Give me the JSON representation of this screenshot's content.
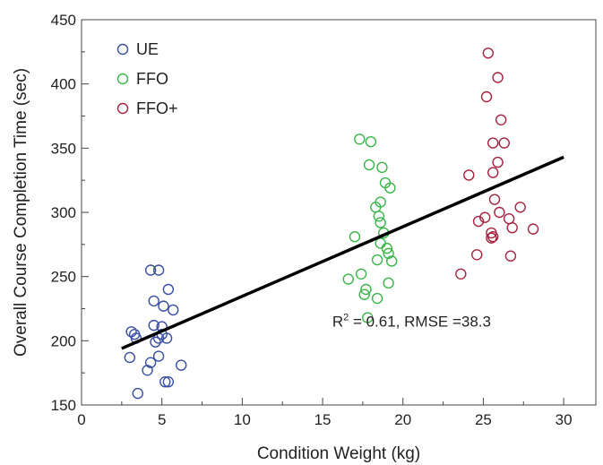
{
  "chart_data": {
    "type": "scatter",
    "xlabel": "Condition Weight (kg)",
    "ylabel": "Overall Course Completion Time (sec)",
    "xlim": [
      0,
      32
    ],
    "ylim": [
      150,
      450
    ],
    "x_ticks": [
      0,
      5,
      10,
      15,
      20,
      25,
      30
    ],
    "y_ticks": [
      150,
      200,
      250,
      300,
      350,
      400,
      450
    ],
    "grid": false,
    "legend_position": "top-left",
    "annotation": {
      "r2_prefix": "R",
      "r2_sup": "2",
      "text": " = 0.61, RMSE =38.3",
      "x": 15.6,
      "y": 211
    },
    "trendline": {
      "x": [
        2.5,
        30
      ],
      "y": [
        194,
        343
      ],
      "color": "#000000"
    },
    "series": [
      {
        "name": "UE",
        "color": "#3a4fa3",
        "points": [
          [
            3.0,
            187
          ],
          [
            3.1,
            207
          ],
          [
            3.3,
            205
          ],
          [
            3.4,
            202
          ],
          [
            3.5,
            159
          ],
          [
            4.1,
            177
          ],
          [
            4.3,
            183
          ],
          [
            4.3,
            255
          ],
          [
            4.5,
            231
          ],
          [
            4.5,
            212
          ],
          [
            4.6,
            199
          ],
          [
            4.8,
            202
          ],
          [
            4.8,
            188
          ],
          [
            4.8,
            255
          ],
          [
            5.0,
            211
          ],
          [
            5.0,
            205
          ],
          [
            5.1,
            227
          ],
          [
            5.2,
            168
          ],
          [
            5.3,
            202
          ],
          [
            5.4,
            240
          ],
          [
            5.4,
            168
          ],
          [
            5.7,
            224
          ],
          [
            6.2,
            181
          ]
        ]
      },
      {
        "name": "FFO",
        "color": "#3ab54a",
        "points": [
          [
            16.6,
            248
          ],
          [
            17.0,
            281
          ],
          [
            17.3,
            357
          ],
          [
            17.4,
            252
          ],
          [
            17.6,
            236
          ],
          [
            17.7,
            240
          ],
          [
            17.8,
            218
          ],
          [
            17.9,
            337
          ],
          [
            18.0,
            355
          ],
          [
            18.3,
            304
          ],
          [
            18.4,
            233
          ],
          [
            18.4,
            263
          ],
          [
            18.5,
            297
          ],
          [
            18.6,
            292
          ],
          [
            18.6,
            276
          ],
          [
            18.6,
            308
          ],
          [
            18.7,
            335
          ],
          [
            18.8,
            284
          ],
          [
            18.9,
            323
          ],
          [
            19.0,
            272
          ],
          [
            19.1,
            268
          ],
          [
            19.1,
            245
          ],
          [
            19.2,
            319
          ],
          [
            19.3,
            262
          ]
        ]
      },
      {
        "name": "FFO+",
        "color": "#a4233f",
        "points": [
          [
            23.6,
            252
          ],
          [
            24.1,
            329
          ],
          [
            24.6,
            267
          ],
          [
            24.7,
            293
          ],
          [
            25.1,
            296
          ],
          [
            25.2,
            390
          ],
          [
            25.3,
            424
          ],
          [
            25.5,
            284
          ],
          [
            25.5,
            280
          ],
          [
            25.6,
            281
          ],
          [
            25.6,
            354
          ],
          [
            25.6,
            331
          ],
          [
            25.7,
            310
          ],
          [
            25.9,
            405
          ],
          [
            25.9,
            339
          ],
          [
            26.0,
            300
          ],
          [
            26.1,
            372
          ],
          [
            26.3,
            354
          ],
          [
            26.6,
            295
          ],
          [
            26.7,
            266
          ],
          [
            26.8,
            288
          ],
          [
            27.3,
            304
          ],
          [
            28.1,
            287
          ]
        ]
      }
    ]
  }
}
